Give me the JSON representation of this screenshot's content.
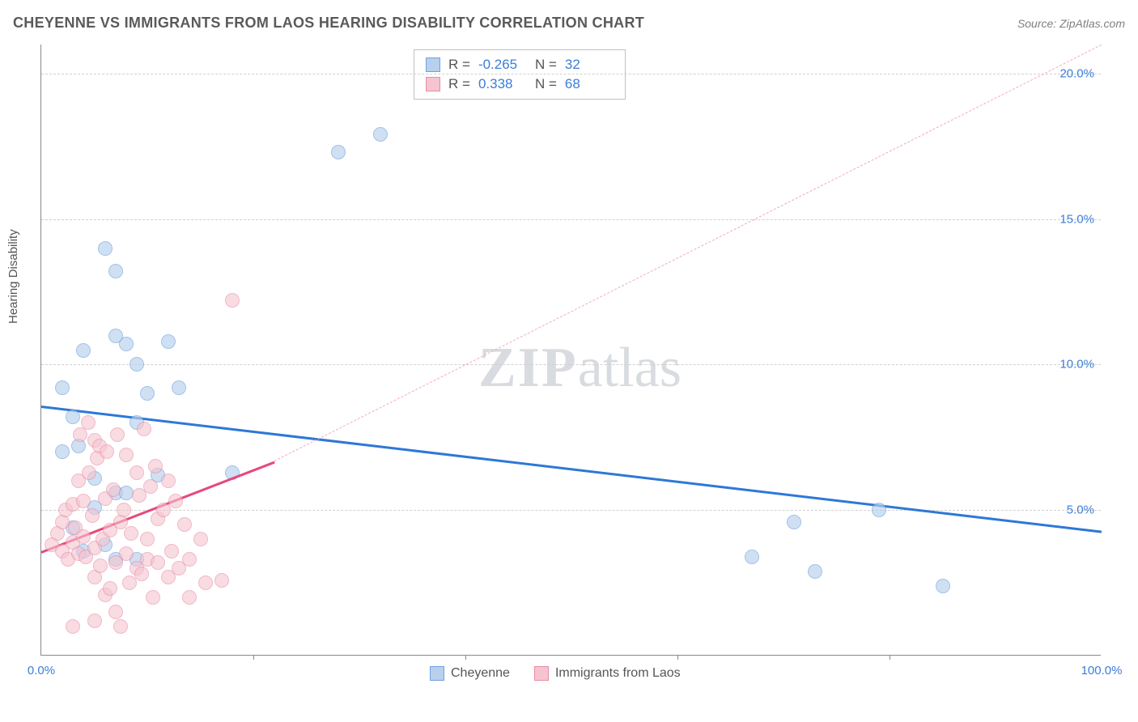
{
  "header": {
    "title": "CHEYENNE VS IMMIGRANTS FROM LAOS HEARING DISABILITY CORRELATION CHART",
    "source": "Source: ZipAtlas.com"
  },
  "ylabel": "Hearing Disability",
  "watermark": {
    "zip": "ZIP",
    "atlas": "atlas"
  },
  "chart": {
    "type": "scatter",
    "xlim": [
      0,
      100
    ],
    "ylim": [
      0,
      21
    ],
    "grid_color": "#d0d0d0",
    "background_color": "#ffffff",
    "axis_color": "#888888",
    "label_color": "#3b7dd8",
    "yticks": [
      {
        "y": 5,
        "label": "5.0%"
      },
      {
        "y": 10,
        "label": "10.0%"
      },
      {
        "y": 15,
        "label": "15.0%"
      },
      {
        "y": 20,
        "label": "20.0%"
      }
    ],
    "xticks": [
      {
        "x": 0,
        "label": "0.0%"
      },
      {
        "x": 100,
        "label": "100.0%"
      }
    ],
    "xtick_marks": [
      20,
      40,
      60,
      80
    ],
    "series": [
      {
        "name": "Cheyenne",
        "fill": "#b8d0ee",
        "stroke": "#6ea3dd",
        "marker_radius": 9,
        "fill_opacity": 0.65,
        "trend": {
          "solid": {
            "x1": 0,
            "y1": 8.6,
            "x2": 100,
            "y2": 4.3,
            "color": "#2d78d6",
            "width": 3
          }
        },
        "points": [
          [
            2,
            9.2
          ],
          [
            3,
            8.2
          ],
          [
            3.5,
            7.2
          ],
          [
            4,
            10.5
          ],
          [
            6,
            14.0
          ],
          [
            7,
            13.2
          ],
          [
            8,
            10.7
          ],
          [
            9,
            10.0
          ],
          [
            7,
            11.0
          ],
          [
            10,
            9.0
          ],
          [
            12,
            10.8
          ],
          [
            9,
            8.0
          ],
          [
            7,
            5.6
          ],
          [
            13,
            9.2
          ],
          [
            11,
            6.2
          ],
          [
            5,
            6.1
          ],
          [
            5,
            5.1
          ],
          [
            8,
            5.6
          ],
          [
            18,
            6.3
          ],
          [
            28,
            17.3
          ],
          [
            32,
            17.9
          ],
          [
            67,
            3.4
          ],
          [
            71,
            4.6
          ],
          [
            73,
            2.9
          ],
          [
            79,
            5.0
          ],
          [
            85,
            2.4
          ],
          [
            6,
            3.8
          ],
          [
            7,
            3.3
          ],
          [
            4,
            3.6
          ],
          [
            3,
            4.4
          ],
          [
            2,
            7.0
          ],
          [
            9,
            3.3
          ]
        ]
      },
      {
        "name": "Immigrants from Laos",
        "fill": "#f6c4d0",
        "stroke": "#e78ba6",
        "marker_radius": 9,
        "fill_opacity": 0.6,
        "trend": {
          "solid": {
            "x1": 0,
            "y1": 3.6,
            "x2": 22,
            "y2": 6.7,
            "color": "#e8487a",
            "width": 3
          },
          "dashed": {
            "x1": 22,
            "y1": 6.7,
            "x2": 100,
            "y2": 21.0,
            "color": "#f3a9bd",
            "width": 1.5,
            "dash": "6,6"
          }
        },
        "points": [
          [
            1,
            3.8
          ],
          [
            1.5,
            4.2
          ],
          [
            2,
            4.6
          ],
          [
            2,
            3.6
          ],
          [
            2.3,
            5.0
          ],
          [
            2.5,
            3.3
          ],
          [
            3,
            5.2
          ],
          [
            3,
            3.9
          ],
          [
            3.2,
            4.4
          ],
          [
            3.5,
            3.5
          ],
          [
            3.5,
            6.0
          ],
          [
            3.7,
            7.6
          ],
          [
            4,
            5.3
          ],
          [
            4,
            4.1
          ],
          [
            4.2,
            3.4
          ],
          [
            4.4,
            8.0
          ],
          [
            4.5,
            6.3
          ],
          [
            4.8,
            4.8
          ],
          [
            5,
            7.4
          ],
          [
            5,
            3.7
          ],
          [
            5,
            2.7
          ],
          [
            5.3,
            6.8
          ],
          [
            5.5,
            7.2
          ],
          [
            5.6,
            3.1
          ],
          [
            5.8,
            4.0
          ],
          [
            6,
            5.4
          ],
          [
            6,
            2.1
          ],
          [
            6.2,
            7.0
          ],
          [
            6.5,
            4.3
          ],
          [
            6.5,
            2.3
          ],
          [
            6.8,
            5.7
          ],
          [
            7,
            3.2
          ],
          [
            7,
            1.5
          ],
          [
            7.2,
            7.6
          ],
          [
            7.5,
            4.6
          ],
          [
            7.5,
            1.0
          ],
          [
            7.8,
            5.0
          ],
          [
            8,
            3.5
          ],
          [
            8,
            6.9
          ],
          [
            8.3,
            2.5
          ],
          [
            8.5,
            4.2
          ],
          [
            9,
            6.3
          ],
          [
            9,
            3.0
          ],
          [
            9.2,
            5.5
          ],
          [
            9.5,
            2.8
          ],
          [
            9.7,
            7.8
          ],
          [
            10,
            4.0
          ],
          [
            10,
            3.3
          ],
          [
            10.3,
            5.8
          ],
          [
            10.5,
            2.0
          ],
          [
            10.8,
            6.5
          ],
          [
            11,
            4.7
          ],
          [
            11,
            3.2
          ],
          [
            11.5,
            5.0
          ],
          [
            12,
            2.7
          ],
          [
            12,
            6.0
          ],
          [
            12.3,
            3.6
          ],
          [
            12.7,
            5.3
          ],
          [
            13,
            3.0
          ],
          [
            13.5,
            4.5
          ],
          [
            14,
            3.3
          ],
          [
            14,
            2.0
          ],
          [
            15,
            4.0
          ],
          [
            15.5,
            2.5
          ],
          [
            17,
            2.6
          ],
          [
            18,
            12.2
          ],
          [
            5,
            1.2
          ],
          [
            3,
            1.0
          ]
        ]
      }
    ],
    "legend_top": [
      {
        "swatch_fill": "#b8d0ee",
        "swatch_stroke": "#6ea3dd",
        "r": "-0.265",
        "n": "32"
      },
      {
        "swatch_fill": "#f6c4d0",
        "swatch_stroke": "#e78ba6",
        "r": "0.338",
        "n": "68"
      }
    ],
    "legend_bottom": [
      {
        "swatch_fill": "#b8d0ee",
        "swatch_stroke": "#6ea3dd",
        "label": "Cheyenne"
      },
      {
        "swatch_fill": "#f6c4d0",
        "swatch_stroke": "#e78ba6",
        "label": "Immigrants from Laos"
      }
    ]
  }
}
